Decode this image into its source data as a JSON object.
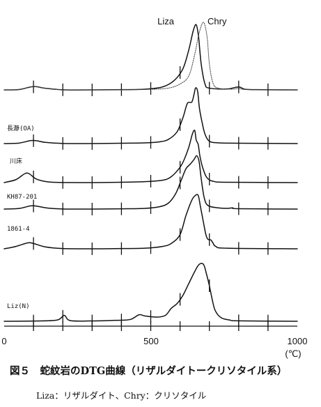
{
  "chart_data": {
    "type": "line",
    "caption_title": "図５　蛇紋岩のDTG曲線（リザルダイトークリソタイル系）",
    "caption_note": "Liza：リザルダイト、Chry：クリソタイル",
    "xunit": "(℃)",
    "xlim": [
      0,
      1000
    ],
    "x_ticks": [
      "0",
      "500",
      "1000"
    ],
    "curve_ticks": [
      100,
      200,
      300,
      400,
      500,
      600,
      700,
      800,
      900
    ],
    "series": [
      {
        "name": "Liza",
        "style": "solid",
        "points": [
          [
            0,
            0
          ],
          [
            50,
            0.3
          ],
          [
            90,
            2.5
          ],
          [
            110,
            2.7
          ],
          [
            140,
            1.4
          ],
          [
            200,
            0.1
          ],
          [
            300,
            0
          ],
          [
            400,
            0.2
          ],
          [
            480,
            0.6
          ],
          [
            540,
            2.5
          ],
          [
            580,
            8
          ],
          [
            610,
            18
          ],
          [
            630,
            34
          ],
          [
            645,
            50
          ],
          [
            655,
            55
          ],
          [
            663,
            45
          ],
          [
            672,
            22
          ],
          [
            685,
            5
          ],
          [
            700,
            1.5
          ],
          [
            760,
            0.8
          ],
          [
            800,
            2.5
          ],
          [
            820,
            0.6
          ],
          [
            860,
            0.2
          ],
          [
            1000,
            0
          ]
        ]
      },
      {
        "name": "Chry",
        "style": "dotted",
        "points": [
          [
            0,
            0
          ],
          [
            50,
            0.3
          ],
          [
            90,
            2.5
          ],
          [
            110,
            2.7
          ],
          [
            140,
            1.4
          ],
          [
            200,
            0.1
          ],
          [
            300,
            0
          ],
          [
            400,
            0.2
          ],
          [
            500,
            0.5
          ],
          [
            560,
            1.5
          ],
          [
            600,
            5
          ],
          [
            630,
            12
          ],
          [
            650,
            30
          ],
          [
            665,
            48
          ],
          [
            680,
            57
          ],
          [
            692,
            45
          ],
          [
            700,
            22
          ],
          [
            712,
            6
          ],
          [
            730,
            1.5
          ],
          [
            780,
            0.6
          ],
          [
            800,
            1.3
          ],
          [
            830,
            0.3
          ],
          [
            1000,
            0
          ]
        ]
      },
      {
        "name": "長瀞(OA)",
        "style": "solid",
        "points": [
          [
            0,
            0
          ],
          [
            50,
            0.4
          ],
          [
            90,
            2.5
          ],
          [
            110,
            2.4
          ],
          [
            140,
            1
          ],
          [
            200,
            0.1
          ],
          [
            300,
            0
          ],
          [
            400,
            0.3
          ],
          [
            480,
            0.6
          ],
          [
            530,
            1.5
          ],
          [
            560,
            3.5
          ],
          [
            590,
            10
          ],
          [
            610,
            22
          ],
          [
            625,
            34
          ],
          [
            640,
            35
          ],
          [
            648,
            42
          ],
          [
            653,
            47
          ],
          [
            660,
            44
          ],
          [
            666,
            30
          ],
          [
            675,
            18
          ],
          [
            685,
            8
          ],
          [
            700,
            2
          ],
          [
            730,
            0.6
          ],
          [
            800,
            0.3
          ],
          [
            1000,
            0
          ]
        ]
      },
      {
        "name": "川床",
        "style": "solid",
        "points": [
          [
            0,
            0
          ],
          [
            40,
            2.5
          ],
          [
            70,
            7.5
          ],
          [
            85,
            7.5
          ],
          [
            110,
            3
          ],
          [
            150,
            0.6
          ],
          [
            200,
            0.1
          ],
          [
            300,
            0
          ],
          [
            400,
            0.3
          ],
          [
            480,
            0.8
          ],
          [
            540,
            2
          ],
          [
            570,
            5
          ],
          [
            600,
            13
          ],
          [
            615,
            20
          ],
          [
            630,
            30
          ],
          [
            642,
            41
          ],
          [
            650,
            44
          ],
          [
            655,
            36
          ],
          [
            662,
            32
          ],
          [
            668,
            22
          ],
          [
            678,
            12
          ],
          [
            692,
            4
          ],
          [
            715,
            1
          ],
          [
            760,
            0.3
          ],
          [
            1000,
            0
          ]
        ]
      },
      {
        "name": "KH87-201",
        "style": "solid",
        "points": [
          [
            0,
            0
          ],
          [
            50,
            0.5
          ],
          [
            90,
            2.7
          ],
          [
            110,
            2.5
          ],
          [
            150,
            0.8
          ],
          [
            200,
            0.1
          ],
          [
            300,
            0
          ],
          [
            400,
            0.2
          ],
          [
            480,
            0.6
          ],
          [
            530,
            2
          ],
          [
            560,
            5
          ],
          [
            585,
            13
          ],
          [
            605,
            25
          ],
          [
            620,
            34
          ],
          [
            635,
            38
          ],
          [
            648,
            42
          ],
          [
            657,
            45
          ],
          [
            665,
            40
          ],
          [
            672,
            26
          ],
          [
            682,
            10
          ],
          [
            695,
            3
          ],
          [
            730,
            1
          ],
          [
            760,
            0.6
          ],
          [
            780,
            1
          ],
          [
            800,
            0.3
          ],
          [
            1000,
            0
          ]
        ]
      },
      {
        "name": "1861-4",
        "style": "solid",
        "points": [
          [
            0,
            0
          ],
          [
            40,
            2
          ],
          [
            80,
            5
          ],
          [
            100,
            4.5
          ],
          [
            140,
            1.6
          ],
          [
            200,
            0.2
          ],
          [
            300,
            0
          ],
          [
            400,
            0.2
          ],
          [
            480,
            0.5
          ],
          [
            540,
            2
          ],
          [
            570,
            4.5
          ],
          [
            600,
            12
          ],
          [
            620,
            28
          ],
          [
            640,
            41
          ],
          [
            652,
            45
          ],
          [
            662,
            45
          ],
          [
            670,
            35
          ],
          [
            680,
            22
          ],
          [
            688,
            12
          ],
          [
            695,
            8
          ],
          [
            705,
            7.5
          ],
          [
            712,
            5
          ],
          [
            722,
            2
          ],
          [
            760,
            0.5
          ],
          [
            1000,
            0
          ]
        ]
      },
      {
        "name": "Liz(N)",
        "style": "solid",
        "points": [
          [
            0,
            0
          ],
          [
            100,
            0.2
          ],
          [
            180,
            1
          ],
          [
            205,
            5
          ],
          [
            225,
            0.6
          ],
          [
            300,
            0.3
          ],
          [
            380,
            0.8
          ],
          [
            430,
            1.5
          ],
          [
            460,
            5.5
          ],
          [
            480,
            4.5
          ],
          [
            520,
            3.5
          ],
          [
            550,
            5
          ],
          [
            570,
            11
          ],
          [
            590,
            15
          ],
          [
            610,
            22
          ],
          [
            630,
            32
          ],
          [
            650,
            42
          ],
          [
            665,
            48
          ],
          [
            680,
            48
          ],
          [
            690,
            40
          ],
          [
            700,
            30
          ],
          [
            710,
            18
          ],
          [
            720,
            9
          ],
          [
            740,
            3
          ],
          [
            770,
            1
          ],
          [
            800,
            0.4
          ],
          [
            1000,
            0
          ]
        ]
      }
    ]
  }
}
